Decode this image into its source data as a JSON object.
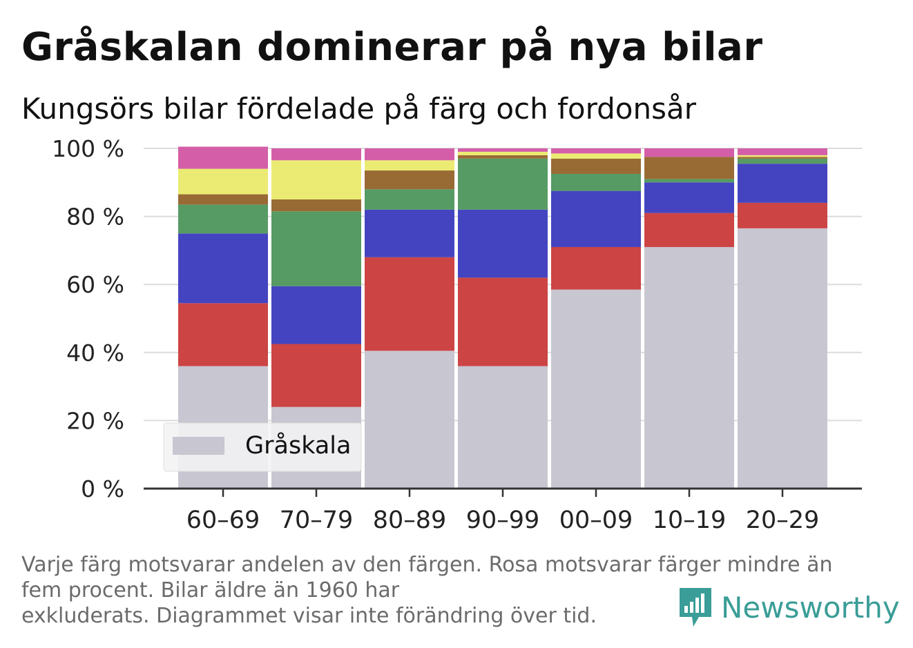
{
  "title": "Gråskalan dominerar på nya bilar",
  "subtitle": "Kungsörs bilar fördelade på färg och fordonsår",
  "footnote_lines": [
    "Varje färg motsvarar andelen av den färgen. Rosa motsvarar färger mindre än",
    "fem procent. Bilar äldre än 1960 har",
    "exkluderats. Diagrammet visar inte förändring över tid."
  ],
  "brand": {
    "name": "Newsworthy",
    "icon": "newsworthy-logo-icon",
    "color": "#3a9d97"
  },
  "chart_data": {
    "type": "bar",
    "stacked": true,
    "categories": [
      "60–69",
      "70–79",
      "80–89",
      "90–99",
      "00–09",
      "10–19",
      "20–29"
    ],
    "y_ticks": [
      "0 %",
      "20 %",
      "40 %",
      "60 %",
      "80 %",
      "100 %"
    ],
    "ylim": [
      0,
      100
    ],
    "grid": true,
    "legend": {
      "placement": "bottom-left",
      "entries": [
        "Gråskala"
      ]
    },
    "series": [
      {
        "name": "Gråskala",
        "color": "#c8c6d0",
        "values": [
          36,
          24,
          40.5,
          36,
          58.5,
          71,
          76.5
        ]
      },
      {
        "color": "#cc4444",
        "values": [
          18.5,
          18.5,
          27.5,
          26,
          12.5,
          10,
          7.5
        ]
      },
      {
        "color": "#4444c0",
        "values": [
          20.5,
          17,
          14,
          20,
          16.5,
          9,
          11.5
        ]
      },
      {
        "color": "#569b63",
        "values": [
          8.5,
          22,
          6,
          15,
          5,
          1,
          1.5
        ]
      },
      {
        "color": "#996b34",
        "values": [
          3,
          3.5,
          5.5,
          1,
          4.5,
          6.5,
          0.5
        ]
      },
      {
        "color": "#ebeb73",
        "values": [
          7.5,
          11.5,
          3,
          1,
          1.5,
          0,
          0.5
        ]
      },
      {
        "color": "#d45fa8",
        "values": [
          6.5,
          3.5,
          3.5,
          1,
          1.5,
          2.5,
          2
        ]
      }
    ]
  }
}
